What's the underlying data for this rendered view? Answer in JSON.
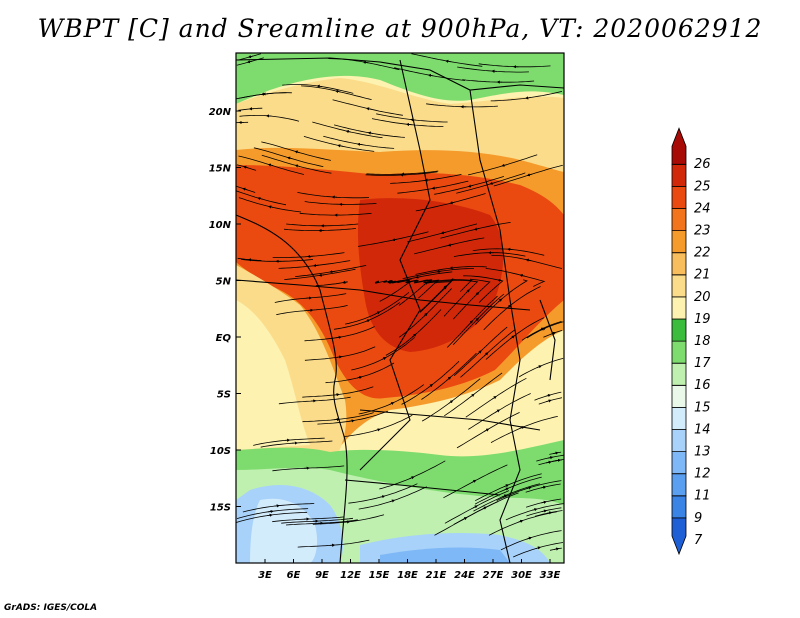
{
  "title": "WBPT [C] and Sreamline at 900hPa, VT: 2020062912",
  "credit": "GrADS: IGES/COLA",
  "map": {
    "lon_labels": [
      "3E",
      "6E",
      "9E",
      "12E",
      "15E",
      "18E",
      "21E",
      "24E",
      "27E",
      "30E",
      "33E"
    ],
    "lat_labels": [
      "20N",
      "15N",
      "10N",
      "5N",
      "EQ",
      "5S",
      "10S",
      "15S"
    ]
  },
  "colorbar": {
    "labels": [
      "7",
      "9",
      "11",
      "12",
      "13",
      "14",
      "15",
      "16",
      "17",
      "18",
      "19",
      "20",
      "21",
      "22",
      "23",
      "24",
      "25",
      "26"
    ],
    "colors": [
      "#1f5fd6",
      "#3a84e6",
      "#5a9ff0",
      "#7fb8f6",
      "#a8d2fa",
      "#d2ecfc",
      "#eaf8ea",
      "#bff0b0",
      "#7edc6e",
      "#3cbc3c",
      "#fdf2b0",
      "#fbdc8a",
      "#f8be5e",
      "#f59b2c",
      "#f2741c",
      "#ea4a10",
      "#d2280a",
      "#a80a06"
    ]
  }
}
